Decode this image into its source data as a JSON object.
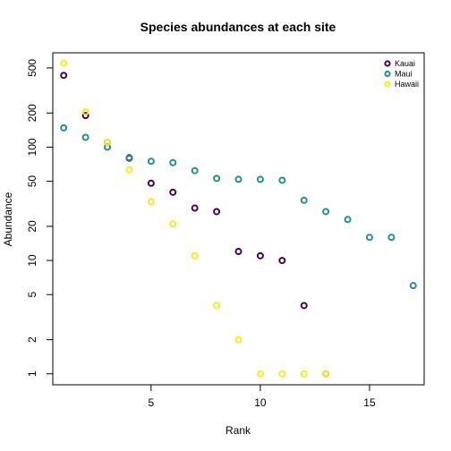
{
  "chart_data": {
    "type": "scatter",
    "title": "Species abundances at each site",
    "xlabel": "Rank",
    "ylabel": "Abundance",
    "y_scale": "log",
    "xlim": [
      0.5,
      17.5
    ],
    "ylim": [
      0.8,
      680
    ],
    "x_ticks": [
      5,
      10,
      15
    ],
    "y_ticks": [
      1,
      2,
      5,
      10,
      20,
      50,
      100,
      200,
      500
    ],
    "legend_position": "top-right",
    "series": [
      {
        "name": "Kauai",
        "color": "#440154",
        "x": [
          1,
          2,
          3,
          4,
          5,
          6,
          7,
          8,
          9,
          10,
          11,
          12,
          13
        ],
        "y": [
          430,
          190,
          110,
          80,
          48,
          40,
          29,
          27,
          12,
          11,
          10,
          4,
          1
        ]
      },
      {
        "name": "Maui",
        "color": "#21908C",
        "x": [
          1,
          2,
          3,
          4,
          5,
          6,
          7,
          8,
          9,
          10,
          11,
          12,
          13,
          14,
          15,
          16,
          17
        ],
        "y": [
          148,
          122,
          100,
          81,
          75,
          73,
          62,
          53,
          52,
          52,
          51,
          34,
          27,
          23,
          16,
          16,
          6
        ]
      },
      {
        "name": "Hawaii",
        "color": "#FDE725",
        "x": [
          1,
          2,
          3,
          4,
          5,
          6,
          7,
          8,
          9,
          10,
          11,
          12,
          13
        ],
        "y": [
          550,
          205,
          110,
          63,
          33,
          21,
          11,
          4,
          2,
          1,
          1,
          1,
          1
        ]
      }
    ]
  }
}
